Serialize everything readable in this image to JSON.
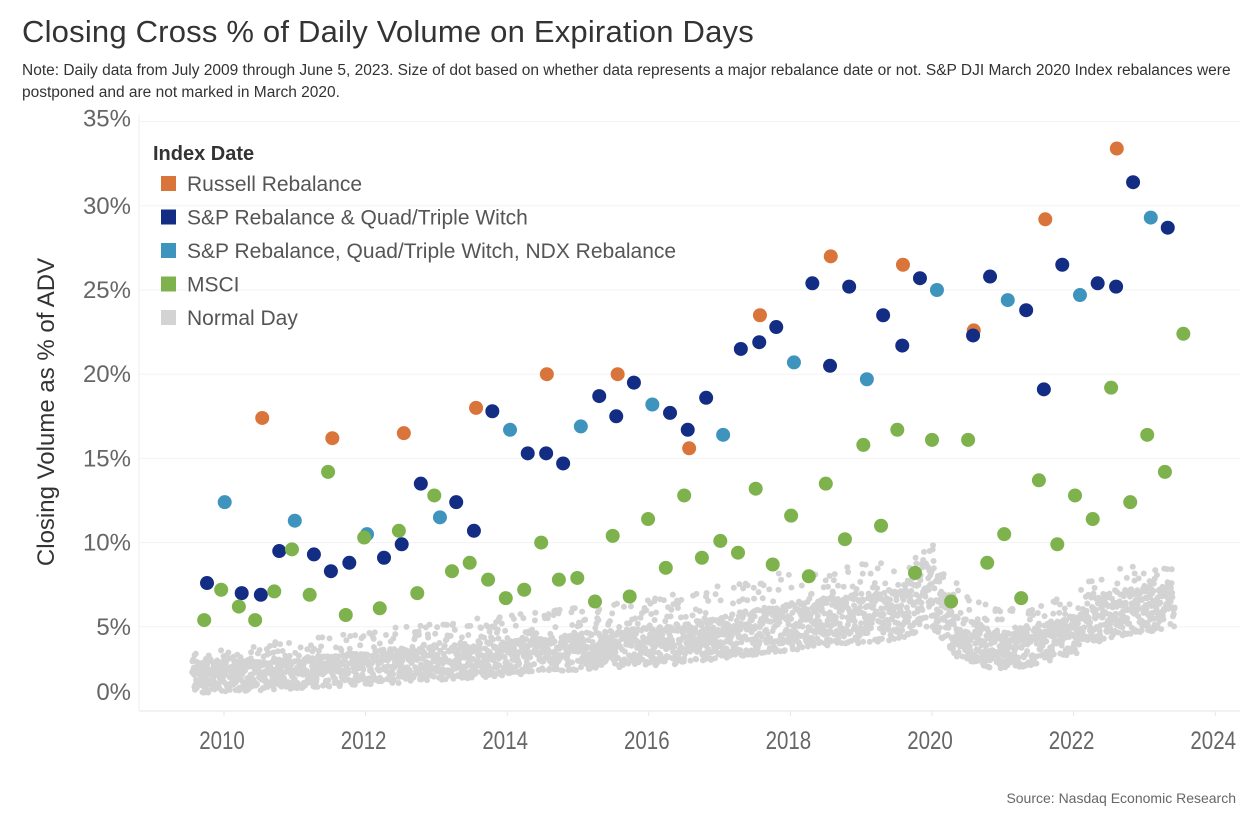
{
  "title": "Closing Cross % of Daily Volume on Expiration Days",
  "note": "Note: Daily data from July 2009 through June 5, 2023. Size of dot based on whether data represents a major rebalance date or not. S&P DJI March 2020 Index rebalances were postponed and are not marked in March 2020.",
  "source": "Source: Nasdaq Economic Research",
  "chart_data": {
    "type": "scatter",
    "title": "Closing Cross % of Daily Volume on Expiration Days",
    "xlabel": "",
    "ylabel": "Closing Volume as % of ADV",
    "xlim": [
      2008.8,
      2024.4
    ],
    "ylim": [
      0,
      35
    ],
    "x_ticks": [
      "2010",
      "2012",
      "2014",
      "2016",
      "2018",
      "2020",
      "2022",
      "2024"
    ],
    "x_tick_values": [
      2010,
      2012,
      2014,
      2016,
      2018,
      2020,
      2022,
      2024
    ],
    "y_ticks": [
      "0%",
      "5%",
      "10%",
      "15%",
      "20%",
      "25%",
      "30%",
      "35%"
    ],
    "y_tick_values": [
      0,
      5,
      10,
      15,
      20,
      25,
      30,
      35
    ],
    "grid": true,
    "legend": {
      "title": "Index Date",
      "placement": "top-left"
    },
    "series": [
      {
        "name": "Russell Rebalance",
        "color": "#D9743A",
        "size": "large",
        "points": [
          [
            2010.54,
            17.4
          ],
          [
            2011.53,
            16.2
          ],
          [
            2012.54,
            16.5
          ],
          [
            2013.56,
            18.0
          ],
          [
            2014.56,
            20.0
          ],
          [
            2015.56,
            20.0
          ],
          [
            2016.57,
            15.6
          ],
          [
            2017.57,
            23.5
          ],
          [
            2018.57,
            27.0
          ],
          [
            2019.59,
            26.5
          ],
          [
            2020.59,
            22.6
          ],
          [
            2021.6,
            29.2
          ],
          [
            2022.61,
            33.4
          ]
        ]
      },
      {
        "name": "S&P Rebalance & Quad/Triple Witch",
        "color": "#142D84",
        "size": "large",
        "points": [
          [
            2009.76,
            7.6
          ],
          [
            2010.25,
            7.0
          ],
          [
            2010.52,
            6.9
          ],
          [
            2010.78,
            9.5
          ],
          [
            2011.27,
            9.3
          ],
          [
            2011.51,
            8.3
          ],
          [
            2011.77,
            8.8
          ],
          [
            2012.26,
            9.1
          ],
          [
            2012.51,
            9.9
          ],
          [
            2012.78,
            13.5
          ],
          [
            2013.28,
            12.4
          ],
          [
            2013.53,
            10.7
          ],
          [
            2013.79,
            17.8
          ],
          [
            2014.29,
            15.3
          ],
          [
            2014.55,
            15.3
          ],
          [
            2014.79,
            14.7
          ],
          [
            2015.3,
            18.7
          ],
          [
            2015.54,
            17.5
          ],
          [
            2015.79,
            19.5
          ],
          [
            2016.3,
            17.7
          ],
          [
            2016.55,
            16.7
          ],
          [
            2016.81,
            18.6
          ],
          [
            2017.3,
            21.5
          ],
          [
            2017.56,
            21.9
          ],
          [
            2017.8,
            22.8
          ],
          [
            2018.31,
            25.4
          ],
          [
            2018.56,
            20.5
          ],
          [
            2018.83,
            25.2
          ],
          [
            2019.31,
            23.5
          ],
          [
            2019.58,
            21.7
          ],
          [
            2019.83,
            25.7
          ],
          [
            2020.58,
            22.3
          ],
          [
            2020.82,
            25.8
          ],
          [
            2021.33,
            23.8
          ],
          [
            2021.58,
            19.1
          ],
          [
            2021.84,
            26.5
          ],
          [
            2022.34,
            25.4
          ],
          [
            2022.6,
            25.2
          ],
          [
            2022.84,
            31.4
          ],
          [
            2023.33,
            28.7
          ]
        ]
      },
      {
        "name": "S&P Rebalance, Quad/Triple Witch, NDX Rebalance",
        "color": "#3F94BE",
        "size": "large",
        "points": [
          [
            2010.01,
            12.4
          ],
          [
            2011.0,
            11.3
          ],
          [
            2012.02,
            10.5
          ],
          [
            2013.05,
            11.5
          ],
          [
            2014.04,
            16.7
          ],
          [
            2015.04,
            16.9
          ],
          [
            2016.05,
            18.2
          ],
          [
            2017.05,
            16.4
          ],
          [
            2018.05,
            20.7
          ],
          [
            2019.08,
            19.7
          ],
          [
            2020.07,
            25.0
          ],
          [
            2021.07,
            24.4
          ],
          [
            2022.09,
            24.7
          ],
          [
            2023.09,
            29.3
          ]
        ]
      },
      {
        "name": "MSCI",
        "color": "#7DB24C",
        "size": "large",
        "points": [
          [
            2009.72,
            5.4
          ],
          [
            2009.96,
            7.2
          ],
          [
            2010.21,
            6.2
          ],
          [
            2010.44,
            5.4
          ],
          [
            2010.71,
            7.1
          ],
          [
            2010.96,
            9.6
          ],
          [
            2011.21,
            6.9
          ],
          [
            2011.47,
            14.2
          ],
          [
            2011.72,
            5.7
          ],
          [
            2011.98,
            10.3
          ],
          [
            2012.2,
            6.1
          ],
          [
            2012.47,
            10.7
          ],
          [
            2012.73,
            7.0
          ],
          [
            2012.97,
            12.8
          ],
          [
            2013.22,
            8.3
          ],
          [
            2013.47,
            8.8
          ],
          [
            2013.73,
            7.8
          ],
          [
            2013.98,
            6.7
          ],
          [
            2014.24,
            7.2
          ],
          [
            2014.48,
            10.0
          ],
          [
            2014.73,
            7.8
          ],
          [
            2014.99,
            7.9
          ],
          [
            2015.24,
            6.5
          ],
          [
            2015.49,
            10.4
          ],
          [
            2015.73,
            6.8
          ],
          [
            2015.99,
            11.4
          ],
          [
            2016.24,
            8.5
          ],
          [
            2016.5,
            12.8
          ],
          [
            2016.75,
            9.1
          ],
          [
            2017.01,
            10.1
          ],
          [
            2017.26,
            9.4
          ],
          [
            2017.51,
            13.2
          ],
          [
            2017.75,
            8.7
          ],
          [
            2018.01,
            11.6
          ],
          [
            2018.26,
            8.0
          ],
          [
            2018.5,
            13.5
          ],
          [
            2018.77,
            10.2
          ],
          [
            2019.03,
            15.8
          ],
          [
            2019.28,
            11.0
          ],
          [
            2019.51,
            16.7
          ],
          [
            2019.76,
            8.2
          ],
          [
            2020.0,
            16.1
          ],
          [
            2020.27,
            6.5
          ],
          [
            2020.51,
            16.1
          ],
          [
            2020.78,
            8.8
          ],
          [
            2021.02,
            10.5
          ],
          [
            2021.26,
            6.7
          ],
          [
            2021.51,
            13.7
          ],
          [
            2021.77,
            9.9
          ],
          [
            2022.02,
            12.8
          ],
          [
            2022.27,
            11.4
          ],
          [
            2022.53,
            19.2
          ],
          [
            2022.8,
            12.4
          ],
          [
            2023.04,
            16.4
          ],
          [
            2023.29,
            14.2
          ],
          [
            2023.55,
            22.4
          ]
        ]
      },
      {
        "name": "Normal Day",
        "color": "#D3D3D3",
        "size": "small",
        "band_columns": [
          "year",
          "low",
          "typical",
          "high"
        ],
        "band": [
          [
            2009.55,
            0.8,
            2.0,
            3.5
          ],
          [
            2010.5,
            1.0,
            2.1,
            4.0
          ],
          [
            2011.5,
            1.2,
            2.4,
            4.5
          ],
          [
            2012.5,
            1.4,
            2.7,
            5.0
          ],
          [
            2013.5,
            1.7,
            3.0,
            5.5
          ],
          [
            2014.5,
            2.0,
            3.3,
            6.0
          ],
          [
            2015.5,
            2.3,
            3.7,
            6.5
          ],
          [
            2016.5,
            2.5,
            4.0,
            7.0
          ],
          [
            2017.5,
            3.0,
            4.7,
            8.0
          ],
          [
            2018.5,
            3.5,
            5.3,
            8.5
          ],
          [
            2019.5,
            3.8,
            5.7,
            9.0
          ],
          [
            2020.0,
            4.5,
            7.0,
            10.0
          ],
          [
            2020.3,
            3.0,
            4.5,
            8.0
          ],
          [
            2021.0,
            2.0,
            3.5,
            6.0
          ],
          [
            2021.5,
            2.5,
            4.0,
            6.5
          ],
          [
            2022.0,
            3.0,
            4.5,
            7.5
          ],
          [
            2022.5,
            4.0,
            5.8,
            8.5
          ],
          [
            2023.43,
            4.5,
            6.3,
            9.0
          ]
        ]
      }
    ]
  }
}
